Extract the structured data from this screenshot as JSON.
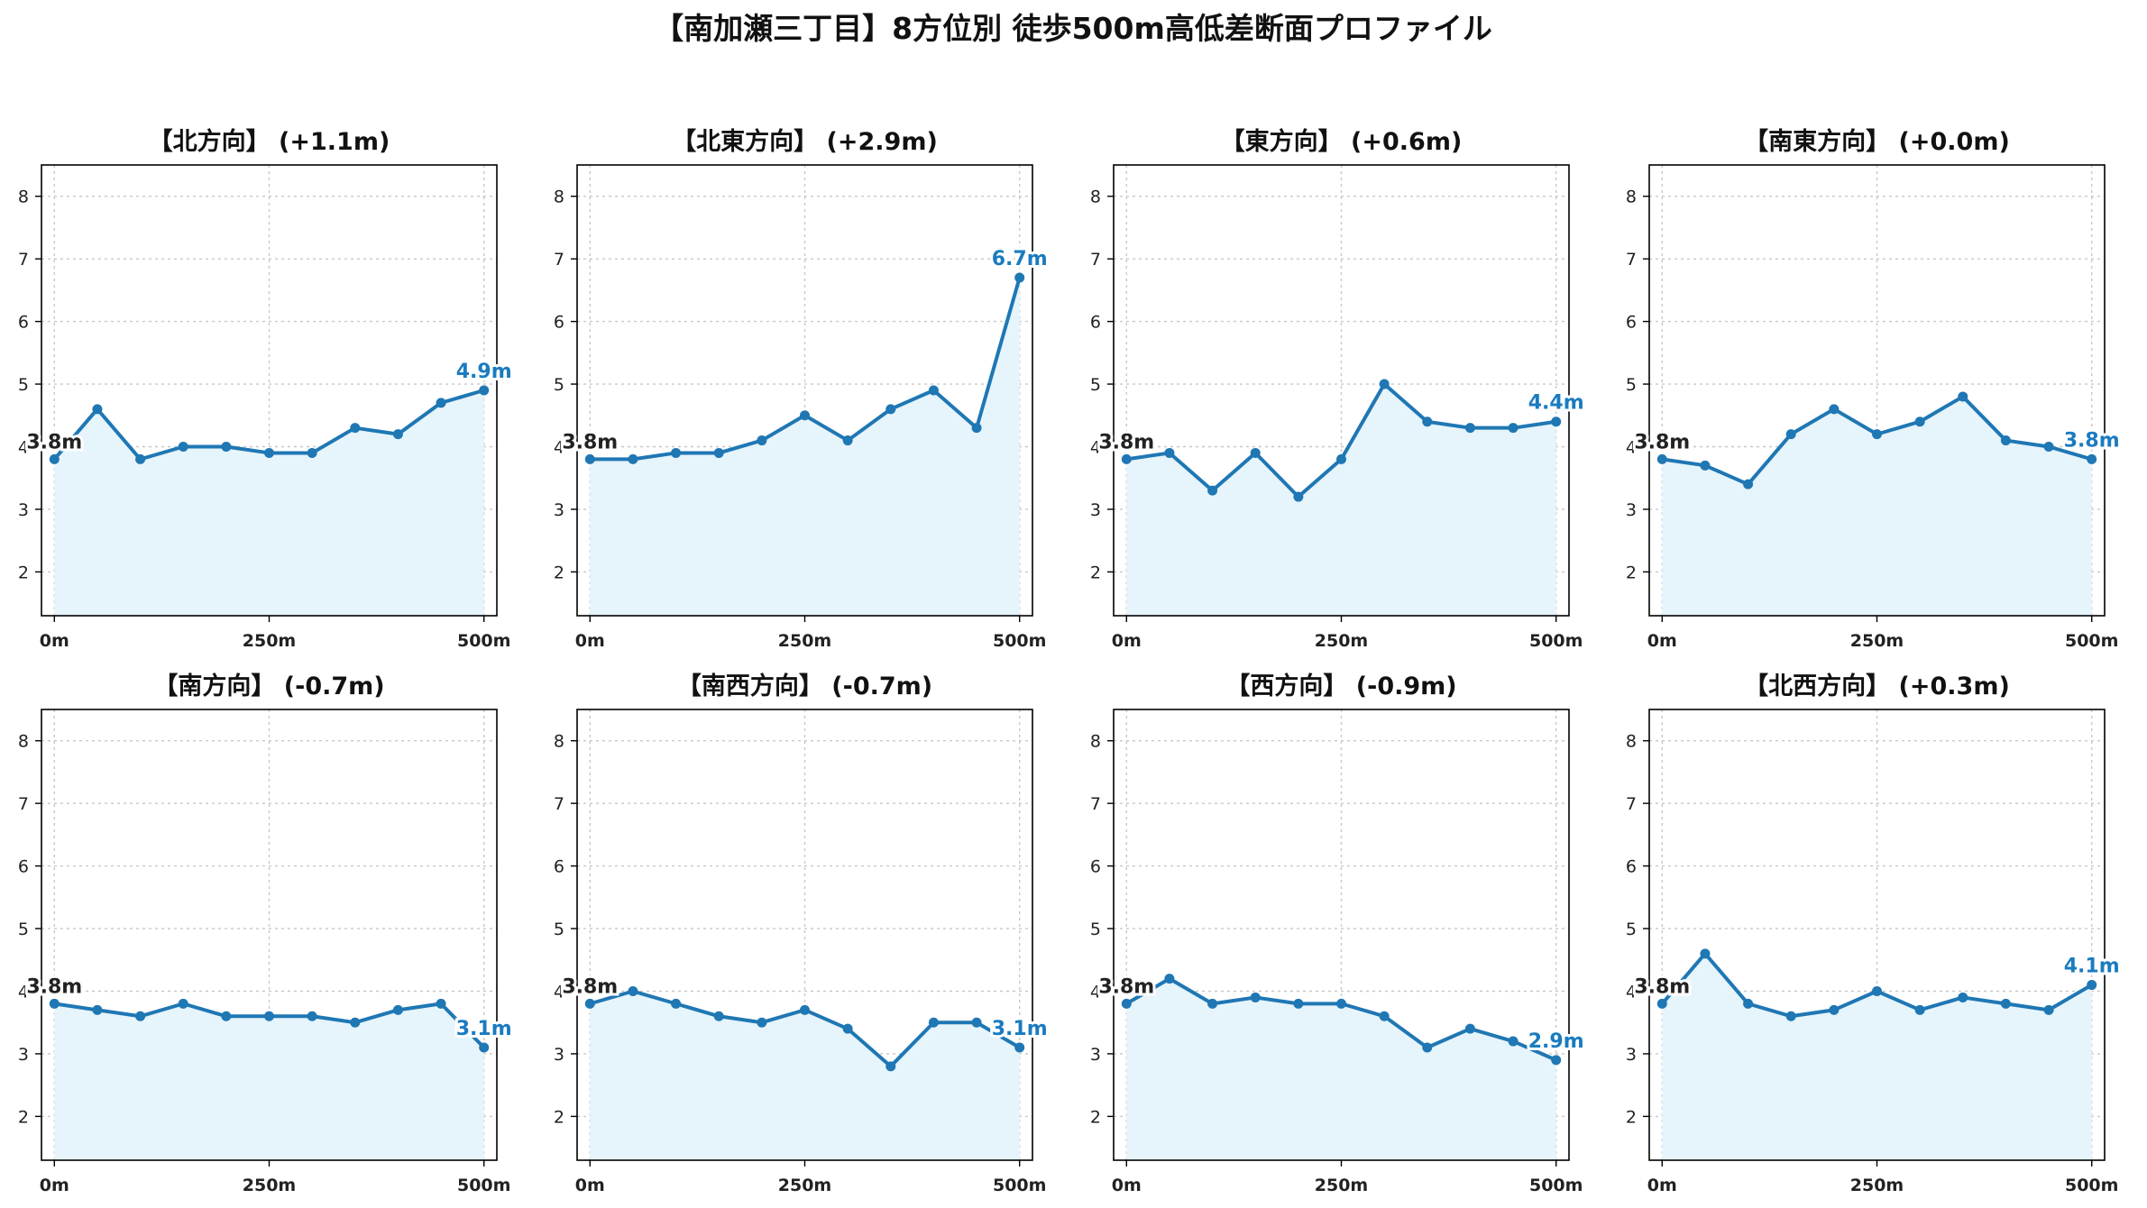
{
  "figure_title": "【南加瀬三丁目】8方位別 徒歩500m高低差断面プロファイル",
  "colors": {
    "line": "#1f77b4",
    "fill": "#e6f4fb",
    "label_start": "#222222",
    "label_end": "#1a7bbf"
  },
  "chart_data": [
    {
      "type": "area",
      "title": "【北方向】 (+1.1m)",
      "x": [
        0,
        50,
        100,
        150,
        200,
        250,
        300,
        350,
        400,
        450,
        500
      ],
      "values": [
        3.8,
        4.6,
        3.8,
        4.0,
        4.0,
        3.9,
        3.9,
        4.3,
        4.2,
        4.7,
        4.9
      ],
      "xticks": [
        "0m",
        "250m",
        "500m"
      ],
      "yticks": [
        "2",
        "3",
        "4",
        "5",
        "6",
        "7",
        "8"
      ],
      "xlim": [
        -15,
        515
      ],
      "ylim": [
        1.3,
        8.5
      ],
      "grid": true,
      "start_label": "3.8m",
      "end_label": "4.9m"
    },
    {
      "type": "area",
      "title": "【北東方向】 (+2.9m)",
      "x": [
        0,
        50,
        100,
        150,
        200,
        250,
        300,
        350,
        400,
        450,
        500
      ],
      "values": [
        3.8,
        3.8,
        3.9,
        3.9,
        4.1,
        4.5,
        4.1,
        4.6,
        4.9,
        4.3,
        6.7
      ],
      "xticks": [
        "0m",
        "250m",
        "500m"
      ],
      "yticks": [
        "2",
        "3",
        "4",
        "5",
        "6",
        "7",
        "8"
      ],
      "xlim": [
        -15,
        515
      ],
      "ylim": [
        1.3,
        8.5
      ],
      "grid": true,
      "start_label": "3.8m",
      "end_label": "6.7m"
    },
    {
      "type": "area",
      "title": "【東方向】 (+0.6m)",
      "x": [
        0,
        50,
        100,
        150,
        200,
        250,
        300,
        350,
        400,
        450,
        500
      ],
      "values": [
        3.8,
        3.9,
        3.3,
        3.9,
        3.2,
        3.8,
        5.0,
        4.4,
        4.3,
        4.3,
        4.4
      ],
      "xticks": [
        "0m",
        "250m",
        "500m"
      ],
      "yticks": [
        "2",
        "3",
        "4",
        "5",
        "6",
        "7",
        "8"
      ],
      "xlim": [
        -15,
        515
      ],
      "ylim": [
        1.3,
        8.5
      ],
      "grid": true,
      "start_label": "3.8m",
      "end_label": "4.4m"
    },
    {
      "type": "area",
      "title": "【南東方向】 (+0.0m)",
      "x": [
        0,
        50,
        100,
        150,
        200,
        250,
        300,
        350,
        400,
        450,
        500
      ],
      "values": [
        3.8,
        3.7,
        3.4,
        4.2,
        4.6,
        4.2,
        4.4,
        4.8,
        4.1,
        4.0,
        3.8
      ],
      "xticks": [
        "0m",
        "250m",
        "500m"
      ],
      "yticks": [
        "2",
        "3",
        "4",
        "5",
        "6",
        "7",
        "8"
      ],
      "xlim": [
        -15,
        515
      ],
      "ylim": [
        1.3,
        8.5
      ],
      "grid": true,
      "start_label": "3.8m",
      "end_label": "3.8m"
    },
    {
      "type": "area",
      "title": "【南方向】 (-0.7m)",
      "x": [
        0,
        50,
        100,
        150,
        200,
        250,
        300,
        350,
        400,
        450,
        500
      ],
      "values": [
        3.8,
        3.7,
        3.6,
        3.8,
        3.6,
        3.6,
        3.6,
        3.5,
        3.7,
        3.8,
        3.1
      ],
      "xticks": [
        "0m",
        "250m",
        "500m"
      ],
      "yticks": [
        "2",
        "3",
        "4",
        "5",
        "6",
        "7",
        "8"
      ],
      "xlim": [
        -15,
        515
      ],
      "ylim": [
        1.3,
        8.5
      ],
      "grid": true,
      "start_label": "3.8m",
      "end_label": "3.1m"
    },
    {
      "type": "area",
      "title": "【南西方向】 (-0.7m)",
      "x": [
        0,
        50,
        100,
        150,
        200,
        250,
        300,
        350,
        400,
        450,
        500
      ],
      "values": [
        3.8,
        4.0,
        3.8,
        3.6,
        3.5,
        3.7,
        3.4,
        2.8,
        3.5,
        3.5,
        3.1
      ],
      "xticks": [
        "0m",
        "250m",
        "500m"
      ],
      "yticks": [
        "2",
        "3",
        "4",
        "5",
        "6",
        "7",
        "8"
      ],
      "xlim": [
        -15,
        515
      ],
      "ylim": [
        1.3,
        8.5
      ],
      "grid": true,
      "start_label": "3.8m",
      "end_label": "3.1m"
    },
    {
      "type": "area",
      "title": "【西方向】 (-0.9m)",
      "x": [
        0,
        50,
        100,
        150,
        200,
        250,
        300,
        350,
        400,
        450,
        500
      ],
      "values": [
        3.8,
        4.2,
        3.8,
        3.9,
        3.8,
        3.8,
        3.6,
        3.1,
        3.4,
        3.2,
        2.9
      ],
      "xticks": [
        "0m",
        "250m",
        "500m"
      ],
      "yticks": [
        "2",
        "3",
        "4",
        "5",
        "6",
        "7",
        "8"
      ],
      "xlim": [
        -15,
        515
      ],
      "ylim": [
        1.3,
        8.5
      ],
      "grid": true,
      "start_label": "3.8m",
      "end_label": "2.9m"
    },
    {
      "type": "area",
      "title": "【北西方向】 (+0.3m)",
      "x": [
        0,
        50,
        100,
        150,
        200,
        250,
        300,
        350,
        400,
        450,
        500
      ],
      "values": [
        3.8,
        4.6,
        3.8,
        3.6,
        3.7,
        4.0,
        3.7,
        3.9,
        3.8,
        3.7,
        4.1
      ],
      "xticks": [
        "0m",
        "250m",
        "500m"
      ],
      "yticks": [
        "2",
        "3",
        "4",
        "5",
        "6",
        "7",
        "8"
      ],
      "xlim": [
        -15,
        515
      ],
      "ylim": [
        1.3,
        8.5
      ],
      "grid": true,
      "start_label": "3.8m",
      "end_label": "4.1m"
    }
  ]
}
